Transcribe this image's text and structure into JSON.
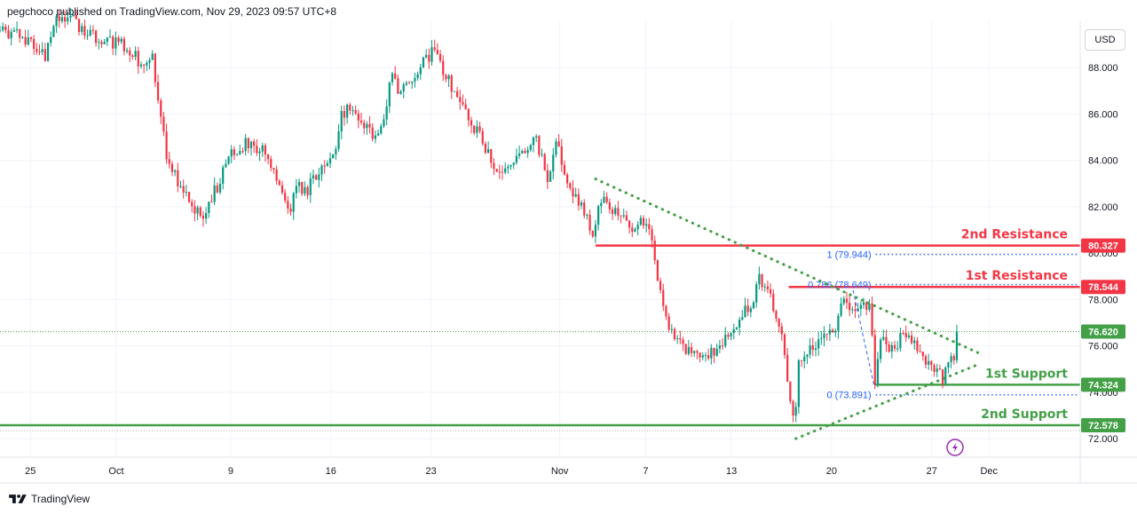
{
  "header": {
    "published_text": "pegchoco published on TradingView.com, Nov 29, 2023 09:57 UTC+8"
  },
  "currency_button": "USD",
  "footer": {
    "brand": "TradingView",
    "logo_icon": "tradingview-logo-icon"
  },
  "colors": {
    "up": "#089981",
    "down": "#f23645",
    "resistance": "#f23645",
    "support": "#43a047",
    "trend": "#43a047",
    "fib": "#2962ff",
    "last_price_bg": "#43a047",
    "lightning": "#9c27b0"
  },
  "chart_data": {
    "type": "candlestick",
    "instrument_note": "price in USD",
    "ylim": [
      71.2,
      90.0
    ],
    "y_ticks": [
      72.0,
      74.0,
      76.0,
      78.0,
      80.0,
      82.0,
      84.0,
      86.0,
      88.0
    ],
    "y_tick_labels": [
      "72.000",
      "74.000",
      "76.000",
      "78.000",
      "80.000",
      "82.000",
      "84.000",
      "86.000",
      "88.000"
    ],
    "x_ticks": [
      "25",
      "Oct",
      "9",
      "16",
      "23",
      "Nov",
      "7",
      "13",
      "20",
      "27",
      "Dec"
    ],
    "x_tick_dates": [
      "2023-09-25",
      "2023-10-01",
      "2023-10-09",
      "2023-10-16",
      "2023-10-23",
      "2023-11-01",
      "2023-11-07",
      "2023-11-13",
      "2023-11-20",
      "2023-11-27",
      "2023-12-01"
    ],
    "x_range": [
      "2023-09-22 21:00",
      "2023-12-07 09:00"
    ],
    "candle_interval_hours": 4,
    "candle_count": 340,
    "price_path": [
      [
        "2023-09-22 21:00",
        89.6
      ],
      [
        "2023-09-25 03:00",
        89.2
      ],
      [
        "2023-09-26 00:00",
        88.5
      ],
      [
        "2023-09-26 12:00",
        89.5
      ],
      [
        "2023-09-27 00:00",
        90.3
      ],
      [
        "2023-09-28 00:00",
        90.0
      ],
      [
        "2023-09-29 00:00",
        89.5
      ],
      [
        "2023-10-02 00:00",
        88.8
      ],
      [
        "2023-10-03 00:00",
        87.8
      ],
      [
        "2023-10-03 12:00",
        88.5
      ],
      [
        "2023-10-04 03:00",
        86.0
      ],
      [
        "2023-10-04 12:00",
        84.0
      ],
      [
        "2023-10-05 00:00",
        83.5
      ],
      [
        "2023-10-06 12:00",
        81.8
      ],
      [
        "2023-10-07 00:00",
        81.5
      ],
      [
        "2023-10-09 06:00",
        84.5
      ],
      [
        "2023-10-10 12:00",
        84.8
      ],
      [
        "2023-10-11 12:00",
        84.2
      ],
      [
        "2023-10-12 12:00",
        82.5
      ],
      [
        "2023-10-13 06:00",
        82.0
      ],
      [
        "2023-10-13 18:00",
        83.5
      ],
      [
        "2023-10-14 00:00",
        82.5
      ],
      [
        "2023-10-16 06:00",
        84.2
      ],
      [
        "2023-10-16 18:00",
        86.0
      ],
      [
        "2023-10-17 12:00",
        86.3
      ],
      [
        "2023-10-18 06:00",
        85.5
      ],
      [
        "2023-10-19 06:00",
        85.0
      ],
      [
        "2023-10-20 00:00",
        86.5
      ],
      [
        "2023-10-20 06:00",
        88.0
      ],
      [
        "2023-10-20 18:00",
        86.5
      ],
      [
        "2023-10-21 00:00",
        87.0
      ],
      [
        "2023-10-23 06:00",
        88.8
      ],
      [
        "2023-10-23 18:00",
        88.0
      ],
      [
        "2023-10-24 12:00",
        87.2
      ],
      [
        "2023-10-25 12:00",
        86.0
      ],
      [
        "2023-10-26 12:00",
        85.0
      ],
      [
        "2023-10-27 12:00",
        83.5
      ],
      [
        "2023-10-28 00:00",
        83.5
      ],
      [
        "2023-10-30 06:00",
        85.0
      ],
      [
        "2023-10-31 06:00",
        83.0
      ],
      [
        "2023-10-31 18:00",
        85.0
      ],
      [
        "2023-11-01 06:00",
        83.5
      ],
      [
        "2023-11-01 18:00",
        82.5
      ],
      [
        "2023-11-02 12:00",
        82.2
      ],
      [
        "2023-11-03 06:00",
        80.8
      ],
      [
        "2023-11-03 18:00",
        82.0
      ],
      [
        "2023-11-04 00:00",
        82.5
      ],
      [
        "2023-11-06 06:00",
        80.8
      ],
      [
        "2023-11-06 18:00",
        81.5
      ],
      [
        "2023-11-07 12:00",
        80.5
      ],
      [
        "2023-11-07 18:00",
        79.0
      ],
      [
        "2023-11-08 06:00",
        77.5
      ],
      [
        "2023-11-08 18:00",
        76.8
      ],
      [
        "2023-11-09 12:00",
        76.0
      ],
      [
        "2023-11-10 06:00",
        75.5
      ],
      [
        "2023-11-10 18:00",
        75.8
      ],
      [
        "2023-11-11 00:00",
        75.5
      ],
      [
        "2023-11-13 06:00",
        76.5
      ],
      [
        "2023-11-14 00:00",
        77.5
      ],
      [
        "2023-11-14 12:00",
        78.0
      ],
      [
        "2023-11-15 00:00",
        79.0
      ],
      [
        "2023-11-15 18:00",
        78.0
      ],
      [
        "2023-11-16 12:00",
        76.5
      ],
      [
        "2023-11-16 18:00",
        75.5
      ],
      [
        "2023-11-17 06:00",
        72.5
      ],
      [
        "2023-11-17 12:00",
        73.5
      ],
      [
        "2023-11-17 18:00",
        75.5
      ],
      [
        "2023-11-18 00:00",
        75.5
      ],
      [
        "2023-11-20 06:00",
        76.8
      ],
      [
        "2023-11-20 18:00",
        78.2
      ],
      [
        "2023-11-21 12:00",
        77.5
      ],
      [
        "2023-11-22 06:00",
        78.0
      ],
      [
        "2023-11-22 18:00",
        77.5
      ],
      [
        "2023-11-23 00:00",
        74.2
      ],
      [
        "2023-11-23 12:00",
        76.5
      ],
      [
        "2023-11-24 06:00",
        75.8
      ],
      [
        "2023-11-24 18:00",
        76.2
      ],
      [
        "2023-11-25 00:00",
        76.5
      ],
      [
        "2023-11-27 06:00",
        75.0
      ],
      [
        "2023-11-27 18:00",
        74.5
      ],
      [
        "2023-11-28 06:00",
        75.5
      ],
      [
        "2023-11-28 12:00",
        75.0
      ],
      [
        "2023-11-28 18:00",
        76.6
      ]
    ],
    "horizontal_levels": [
      {
        "name": "2nd Resistance",
        "price": 80.327,
        "badge": "80.327",
        "color": "#f23645"
      },
      {
        "name": "1st Resistance",
        "price": 78.544,
        "badge": "78.544",
        "color": "#f23645"
      },
      {
        "name": "1st Support",
        "price": 74.324,
        "badge": "74.324",
        "color": "#43a047"
      },
      {
        "name": "2nd Support",
        "price": 72.578,
        "badge": "72.578",
        "color": "#43a047"
      }
    ],
    "last_price": {
      "value": 76.62,
      "badge": "76.620"
    },
    "fib_levels": [
      {
        "label": "1 (79.944)",
        "price": 79.944
      },
      {
        "label": "0.786 (78.649)",
        "price": 78.649
      },
      {
        "label": "0 (73.891)",
        "price": 73.891
      }
    ],
    "fib_anchor_start": "2023-11-17 12:00",
    "fib_swing": [
      [
        "2023-11-21 12:00",
        78.4
      ],
      [
        "2023-11-23 00:00",
        74.2
      ]
    ],
    "trendlines": [
      {
        "name": "descending",
        "from": [
          "2023-11-03 12:00",
          83.2
        ],
        "to": [
          "2023-11-30 06:00",
          75.7
        ]
      },
      {
        "name": "ascending",
        "from": [
          "2023-11-17 12:00",
          72.0
        ],
        "to": [
          "2023-11-30 06:00",
          75.2
        ]
      }
    ]
  }
}
